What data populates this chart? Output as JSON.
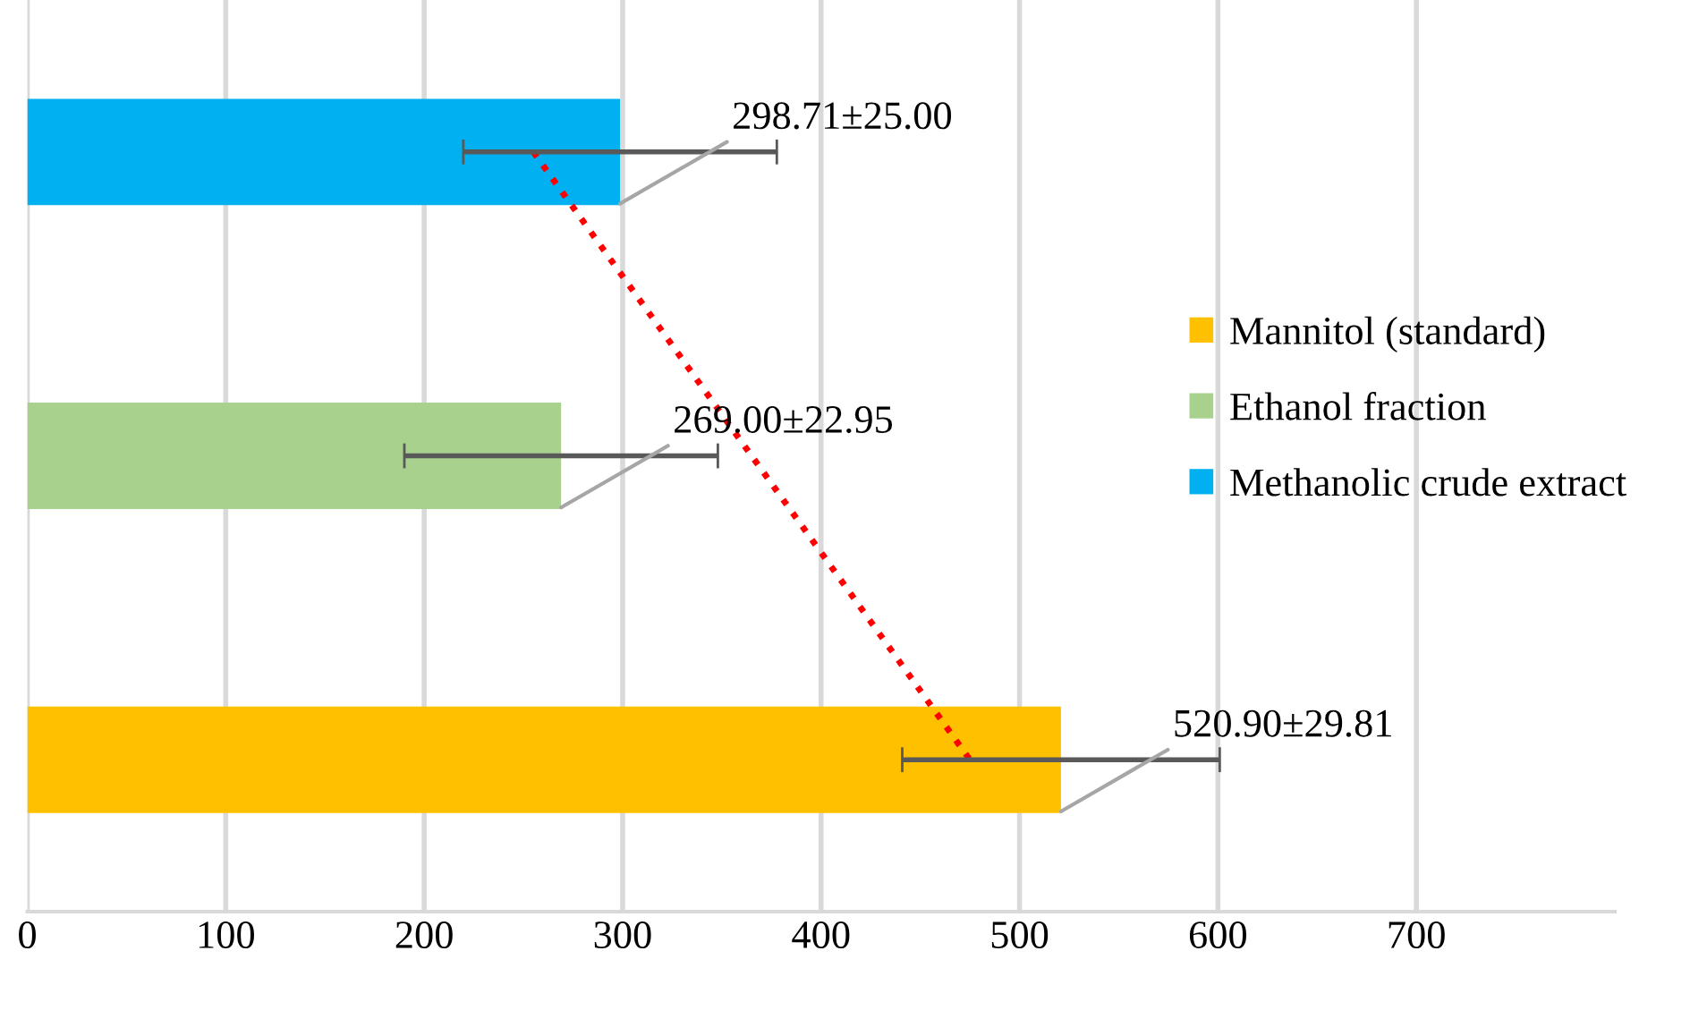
{
  "chart_data": {
    "type": "bar",
    "orientation": "horizontal",
    "categories": [
      null,
      null,
      null
    ],
    "series": [
      {
        "name": "Mannitol (standard)",
        "color": "#ffc000",
        "values": [
          null,
          null,
          520.9
        ],
        "errors": [
          null,
          null,
          80
        ],
        "value_labels": [
          null,
          null,
          "520.90±29.81"
        ]
      },
      {
        "name": "Ethanol fraction",
        "color": "#a9d18e",
        "values": [
          null,
          269.0,
          null
        ],
        "errors": [
          null,
          79,
          null
        ],
        "value_labels": [
          null,
          "269.00±22.95",
          null
        ]
      },
      {
        "name": "Methanolic crude extract",
        "color": "#00b0f0",
        "values": [
          298.71,
          null,
          null
        ],
        "errors": [
          79,
          null,
          null
        ],
        "value_labels": [
          "298.71±25.00",
          null,
          null
        ]
      },
      {
        "type": "line",
        "color": "#ff0000",
        "line_style": "dotted",
        "values": [
          255,
          365,
          475
        ]
      }
    ],
    "xlim": [
      0,
      800
    ],
    "xticks": [
      0,
      100,
      200,
      300,
      400,
      500,
      600,
      700
    ],
    "grid": "x",
    "legend": "right",
    "tick_labels": "x"
  }
}
